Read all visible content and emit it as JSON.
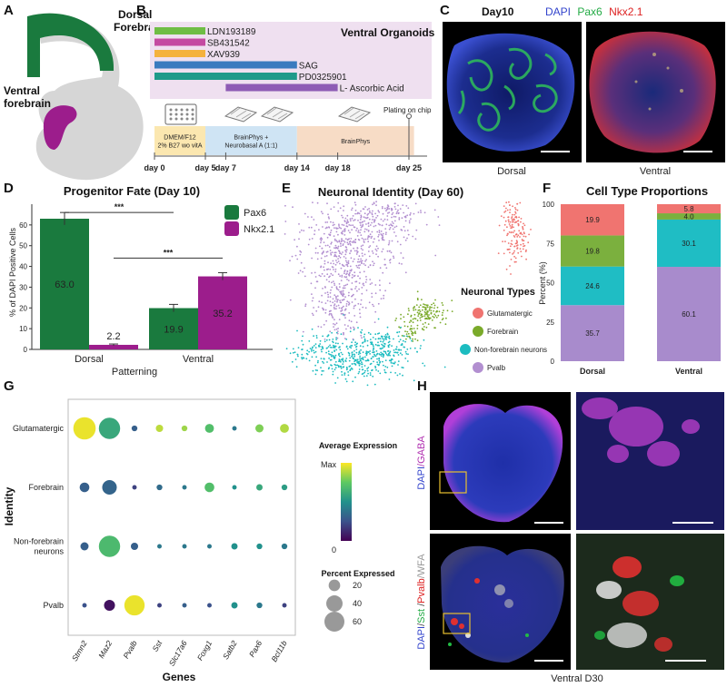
{
  "panels": {
    "a": {
      "label": "A",
      "dorsal_label": [
        "Dorsal",
        "Forebrain"
      ],
      "ventral_label": [
        "Ventral",
        "forebrain"
      ],
      "colors": {
        "dorsal": "#1a7a3e",
        "ventral": "#9c1d8c",
        "tissue": "#d6d6d6"
      }
    },
    "b": {
      "label": "B",
      "title": "Ventral Organoids",
      "bars": [
        {
          "name": "LDN193189",
          "color": "#6fbd45",
          "start": 0,
          "end": 5
        },
        {
          "name": "SB431542",
          "color": "#c44aa1",
          "start": 0,
          "end": 5
        },
        {
          "name": "XAV939",
          "color": "#f4b23e",
          "start": 0,
          "end": 5
        },
        {
          "name": "SAG",
          "color": "#3a7bbf",
          "start": 0,
          "end": 14
        },
        {
          "name": "PD0325901",
          "color": "#1f9a8a",
          "start": 0,
          "end": 14
        },
        {
          "name": "L- Ascorbic Acid",
          "color": "#8e5bb5",
          "start": 7,
          "end": 18
        }
      ],
      "media": [
        {
          "lines": [
            "DMEM/F12",
            "2% B27 wo vitA"
          ],
          "start": 0,
          "end": 5,
          "color": "#fbe7b0",
          "text_color": "#b08a2a"
        },
        {
          "lines": [
            "BrainPhys +",
            "Neurobasal A (1:1)"
          ],
          "start": 5,
          "end": 14,
          "color": "#cfe4f4",
          "text_color": "#3a6d9a"
        },
        {
          "lines": [
            "BrainPhys"
          ],
          "start": 14,
          "end": 25.5,
          "color": "#f7dcc6",
          "text_color": "#b3622a"
        }
      ],
      "plating_label": "Plating on chip",
      "ticks": [
        {
          "day": 0,
          "label": "day 0"
        },
        {
          "day": 5,
          "label": "day 5"
        },
        {
          "day": 7,
          "label": "day 7"
        },
        {
          "day": 14,
          "label": "day 14"
        },
        {
          "day": 18,
          "label": "day 18"
        },
        {
          "day": 25,
          "label": "day 25"
        }
      ]
    },
    "c": {
      "label": "C",
      "heading": "Day10",
      "stains": [
        {
          "text": "DAPI",
          "color": "#3344cc"
        },
        {
          "text": "Pax6",
          "color": "#22aa44"
        },
        {
          "text": "Nkx2.1",
          "color": "#dd2222"
        }
      ],
      "captions": [
        "Dorsal",
        "Ventral"
      ]
    },
    "d": {
      "label": "D"
    },
    "e": {
      "label": "E"
    },
    "f": {
      "label": "F"
    },
    "g": {
      "label": "G"
    },
    "h": {
      "label": "H",
      "row_labels": [
        [
          {
            "text": "DAPI",
            "color": "#3344cc"
          },
          {
            "text": "/GABA",
            "color": "#b030b0"
          }
        ],
        [
          {
            "text": "DAPI",
            "color": "#3344cc"
          },
          {
            "text": "/",
            "color": "#444"
          },
          {
            "text": "Sst",
            "color": "#22aa44"
          },
          {
            "text": " /",
            "color": "#444"
          },
          {
            "text": "Pvalb",
            "color": "#dd2222"
          },
          {
            "text": "/WFA",
            "color": "#999999"
          }
        ]
      ],
      "caption": "Ventral D30"
    }
  },
  "chart_data": [
    {
      "panel": "D",
      "type": "bar",
      "title": "Progenitor Fate (Day 10)",
      "xlabel": "Patterning",
      "ylabel": "% of DAPI Positive Cells",
      "categories": [
        "Dorsal",
        "Ventral"
      ],
      "series": [
        {
          "name": "Pax6",
          "color": "#1a7a3e",
          "values": [
            63.0,
            19.9
          ],
          "errors": [
            3.0,
            1.8
          ]
        },
        {
          "name": "Nkx2.1",
          "color": "#9c1d8c",
          "values": [
            2.2,
            35.2
          ],
          "errors": [
            0.4,
            1.8
          ]
        }
      ],
      "value_labels": [
        "63.0",
        "2.2",
        "19.9",
        "35.2"
      ],
      "ylim": [
        0,
        70
      ],
      "yticks": [
        0,
        10,
        20,
        30,
        40,
        50,
        60
      ],
      "significance": [
        "***",
        "***"
      ],
      "legend": "top-right"
    },
    {
      "panel": "E",
      "type": "scatter",
      "title": "Neuronal Identity (Day 60)",
      "legend_title": "Neuronal Types",
      "series": [
        {
          "name": "Glutamatergic",
          "color": "#f07470"
        },
        {
          "name": "Forebrain",
          "color": "#7aaa2a"
        },
        {
          "name": "Non-forebrain neurons",
          "color": "#1cbcc0"
        },
        {
          "name": "Pvalb",
          "color": "#b28fd0"
        }
      ]
    },
    {
      "panel": "F",
      "type": "bar",
      "title": "Cell Type Proportions",
      "ylabel": "Percent (%)",
      "categories": [
        "Dorsal",
        "Ventral"
      ],
      "series": [
        {
          "name": "Pvalb",
          "color": "#a88bcc",
          "values": [
            35.7,
            60.1
          ],
          "labels": [
            "35.7",
            "60.1"
          ]
        },
        {
          "name": "Non-forebrain neurons",
          "color": "#1fbdc4",
          "values": [
            24.6,
            30.1
          ],
          "labels": [
            "24.6",
            "30.1"
          ]
        },
        {
          "name": "Forebrain",
          "color": "#7bb03e",
          "values": [
            19.8,
            4.0
          ],
          "labels": [
            "19.8",
            "4.0"
          ]
        },
        {
          "name": "Glutamatergic",
          "color": "#f07470",
          "values": [
            19.9,
            5.8
          ],
          "labels": [
            "19.9",
            "5.8"
          ]
        }
      ],
      "ylim": [
        0,
        100
      ],
      "yticks": [
        0,
        25,
        50,
        75,
        100
      ],
      "stacked": true
    },
    {
      "panel": "G",
      "type": "dotplot",
      "xlabel": "Genes",
      "ylabel": "Identity",
      "genes": [
        "Stmn2",
        "Maz2",
        "Pvalb",
        "Sst",
        "Slc17a6",
        "Foxg1",
        "Satb2",
        "Pax6",
        "Bcl11b"
      ],
      "rows": [
        "Glutamatergic",
        "Forebrain",
        "Non-forebrain neurons",
        "Pvalb"
      ],
      "row_display": [
        [
          "Glutamatergic"
        ],
        [
          "Forebrain"
        ],
        [
          "Non-forebrain",
          "neurons"
        ],
        [
          "Pvalb"
        ]
      ],
      "avg_expression": [
        [
          0.97,
          0.6,
          0.3,
          0.9,
          0.85,
          0.7,
          0.4,
          0.8,
          0.88
        ],
        [
          0.3,
          0.32,
          0.2,
          0.35,
          0.4,
          0.7,
          0.5,
          0.6,
          0.55
        ],
        [
          0.3,
          0.68,
          0.3,
          0.4,
          0.4,
          0.4,
          0.5,
          0.5,
          0.4
        ],
        [
          0.25,
          0.05,
          0.97,
          0.2,
          0.3,
          0.25,
          0.5,
          0.4,
          0.2
        ]
      ],
      "pct_expressed": [
        [
          75,
          68,
          5,
          8,
          5,
          12,
          3,
          10,
          12
        ],
        [
          14,
          32,
          3,
          5,
          3,
          14,
          3,
          6,
          5
        ],
        [
          10,
          68,
          8,
          3,
          3,
          3,
          6,
          5,
          5
        ],
        [
          3,
          18,
          62,
          3,
          3,
          3,
          6,
          5,
          3
        ]
      ],
      "color_legend_title": "Average Expression",
      "color_legend_ticks": [
        "Max",
        "0"
      ],
      "size_legend_title": "Percent Expressed",
      "size_legend_values": [
        20,
        40,
        60
      ]
    }
  ]
}
